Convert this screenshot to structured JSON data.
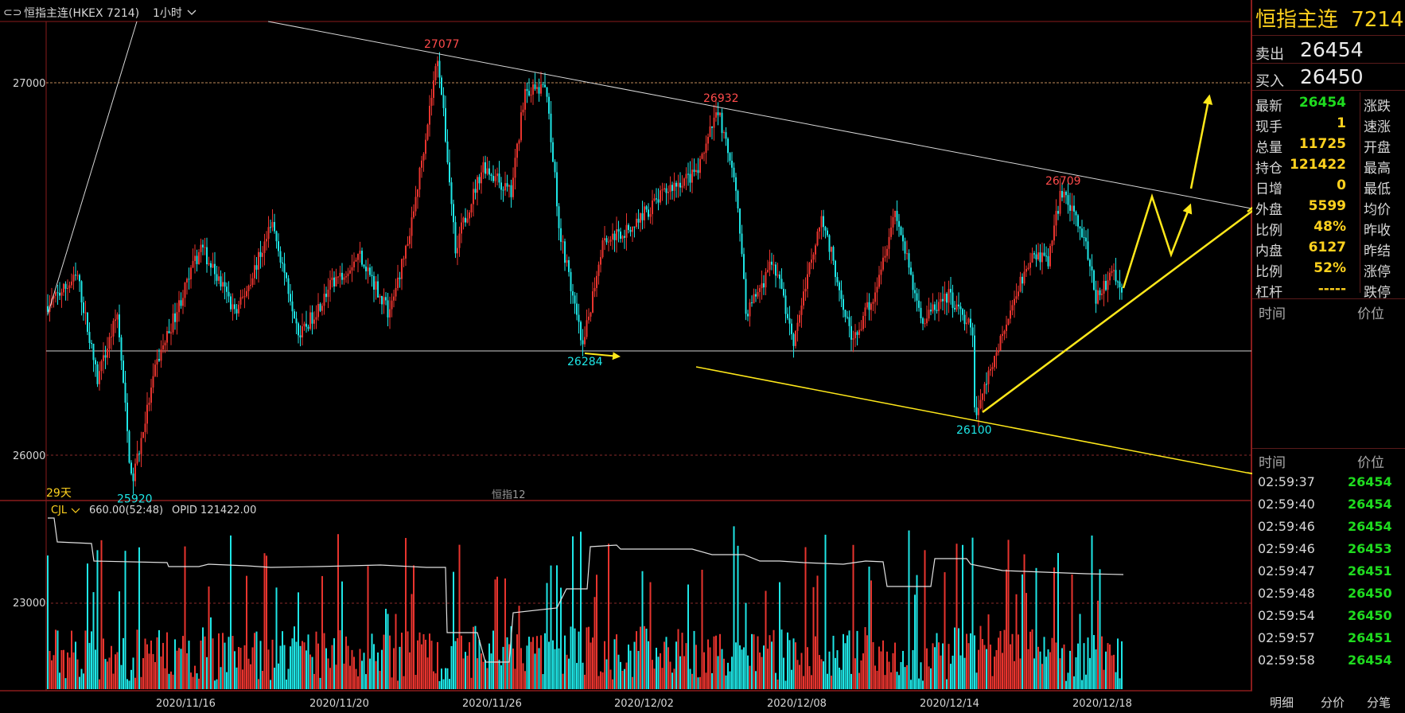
{
  "header": {
    "symbol_label": "恒指主连(HKEX 7214)",
    "period_label": "1小时"
  },
  "chart_data": {
    "type": "candlestick",
    "price_axis": {
      "ticks": [
        27000,
        26000
      ],
      "range": [
        25860,
        27180
      ]
    },
    "volume_axis": {
      "ticks": [
        23000
      ]
    },
    "x_tick_labels": [
      "2020/11/16",
      "2020/11/20",
      "2020/11/26",
      "2020/12/02",
      "2020/12/08",
      "2020/12/14",
      "2020/12/18"
    ],
    "annotations": {
      "high_27077": "27077",
      "high_26932": "26932",
      "high_26709": "26709",
      "low_26284": "26284",
      "low_26100": "26100",
      "low_25920": "25920"
    },
    "key_points": [
      {
        "label": "25920",
        "date": "2020/11/16",
        "price": 25920
      },
      {
        "label": "27077",
        "date": "2020/11/25",
        "price": 27077
      },
      {
        "label": "26284",
        "date": "2020/12/02",
        "price": 26284
      },
      {
        "label": "26932",
        "date": "2020/12/07",
        "price": 26932
      },
      {
        "label": "26100",
        "date": "2020/12/14",
        "price": 26100
      },
      {
        "label": "26709",
        "date": "2020/12/17",
        "price": 26709
      }
    ],
    "horizontal_lines": [
      27000,
      26280,
      26000
    ],
    "span_label": "29天",
    "indicator_label": "恒指12",
    "volume_header": {
      "name": "CJL",
      "value": "660.00(52:48)",
      "opid": "OPID 121422.00"
    },
    "up_color": "#e8342e",
    "down_color": "#1ee6e6",
    "grid": false
  },
  "panel": {
    "title_name": "恒指主连",
    "title_code": "7214",
    "sell_label": "卖出",
    "sell_value": "26454",
    "buy_label": "买入",
    "buy_value": "26450",
    "rows": [
      {
        "label": "最新",
        "value": "26454",
        "color": "#1fdc1f",
        "right": "涨跌"
      },
      {
        "label": "现手",
        "value": "1",
        "color": "#ffd21e",
        "right": "速涨"
      },
      {
        "label": "总量",
        "value": "11725",
        "color": "#ffd21e",
        "right": "开盘"
      },
      {
        "label": "持仓",
        "value": "121422",
        "color": "#ffd21e",
        "right": "最高"
      },
      {
        "label": "日增",
        "value": "0",
        "color": "#ffd21e",
        "right": "最低"
      },
      {
        "label": "外盘",
        "value": "5599",
        "color": "#ffd21e",
        "right": "均价"
      },
      {
        "label": "比例",
        "value": "48%",
        "color": "#ffd21e",
        "right": "昨收"
      },
      {
        "label": "内盘",
        "value": "6127",
        "color": "#ffd21e",
        "right": "昨结"
      },
      {
        "label": "比例",
        "value": "52%",
        "color": "#ffd21e",
        "right": "涨停"
      },
      {
        "label": "杠杆",
        "value": "-----",
        "color": "#ffd21e",
        "right": "跌停"
      }
    ],
    "col_time": "时间",
    "col_price": "价位",
    "col_time2": "时间",
    "col_price2": "价位",
    "ticks": [
      {
        "time": "02:59:37",
        "price": "26454"
      },
      {
        "time": "02:59:40",
        "price": "26454"
      },
      {
        "time": "02:59:46",
        "price": "26454"
      },
      {
        "time": "02:59:46",
        "price": "26453"
      },
      {
        "time": "02:59:47",
        "price": "26451"
      },
      {
        "time": "02:59:48",
        "price": "26450"
      },
      {
        "time": "02:59:54",
        "price": "26450"
      },
      {
        "time": "02:59:57",
        "price": "26451"
      },
      {
        "time": "02:59:58",
        "price": "26454"
      }
    ],
    "tabs": [
      "明细",
      "分价",
      "分笔"
    ]
  }
}
